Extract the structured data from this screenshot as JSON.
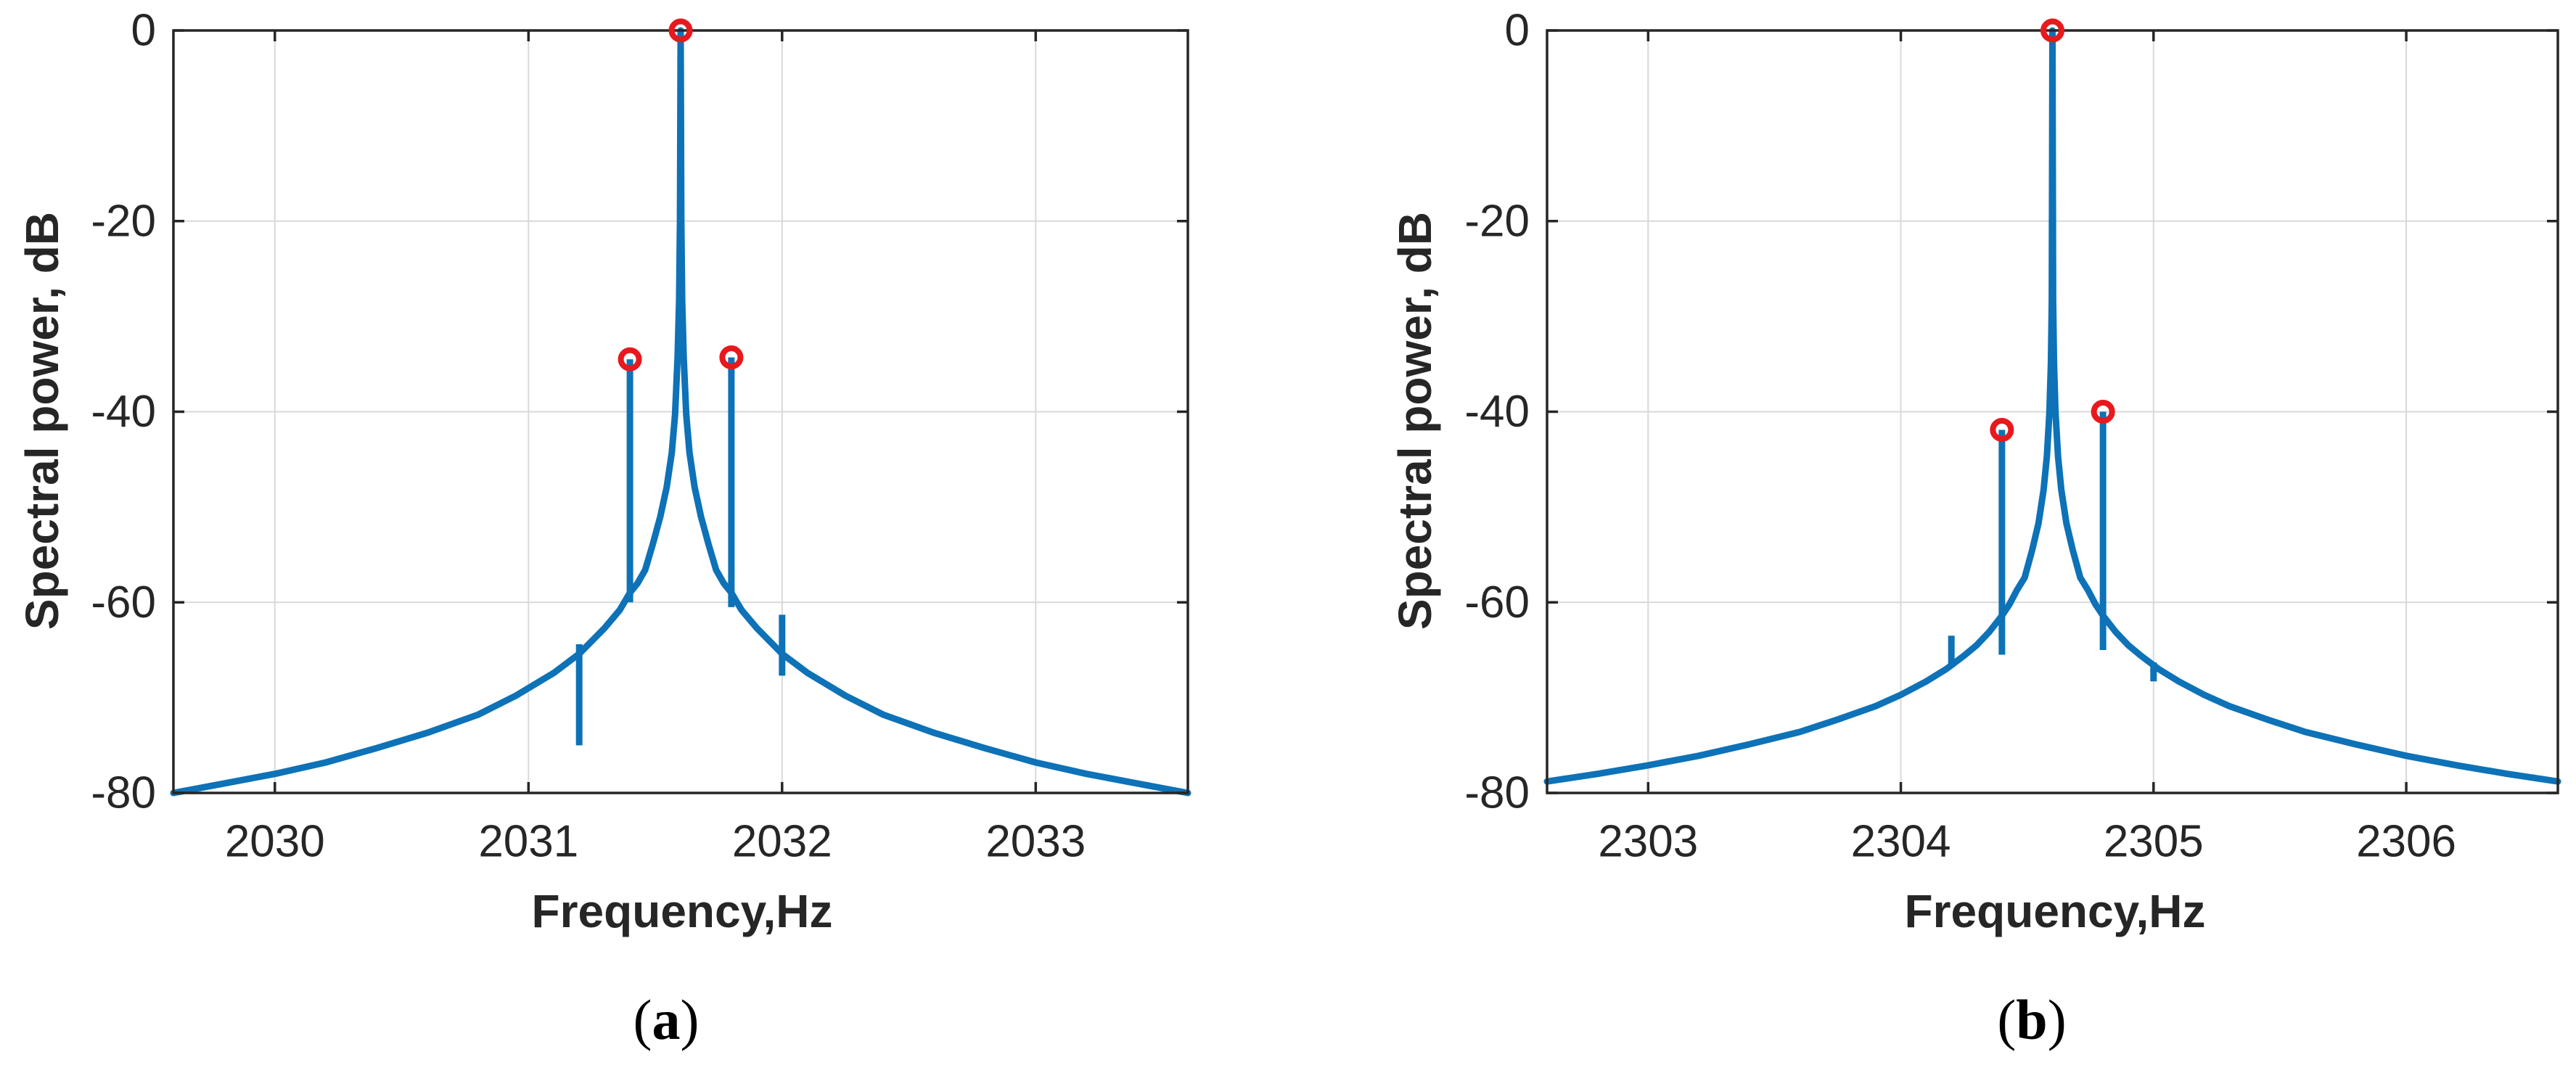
{
  "figure": {
    "background": "#ffffff",
    "ylabel": "Spectral power, dB",
    "xlabel": "Frequency,Hz"
  },
  "captions": {
    "a": {
      "open": "(",
      "letter": "a",
      "close": ")"
    },
    "b": {
      "open": "(",
      "letter": "b",
      "close": ")"
    }
  },
  "colors": {
    "line_blue": "#0d72b7",
    "marker_red": "#e8191d",
    "axis": "#262626",
    "grid": "#d9d9d9",
    "text": "#262626",
    "background": "#ffffff"
  },
  "chart_data": [
    {
      "id": "a",
      "type": "line",
      "xlabel": "Frequency,Hz",
      "ylabel": "Spectral power, dB",
      "xlim": [
        2029.6,
        2033.6
      ],
      "ylim": [
        -80,
        0
      ],
      "xticks": [
        2030,
        2031,
        2032,
        2033
      ],
      "yticks": [
        0,
        -20,
        -40,
        -60,
        -80
      ],
      "grid": true,
      "main_peak": {
        "freq": 2031.6,
        "dB": 0
      },
      "sidebands": [
        {
          "freq": 2031.4,
          "dB": -34.5
        },
        {
          "freq": 2031.8,
          "dB": -34.3
        }
      ],
      "markers": [
        {
          "freq": 2031.6,
          "dB": 0
        },
        {
          "freq": 2031.4,
          "dB": -34.5
        },
        {
          "freq": 2031.8,
          "dB": -34.3
        }
      ],
      "stems": [
        {
          "freq": 2031.4,
          "top": -34.5,
          "bottom": -60.0
        },
        {
          "freq": 2031.8,
          "top": -34.3,
          "bottom": -60.5
        }
      ],
      "spurs": [
        {
          "freq": 2031.2,
          "top": -64.4,
          "bottom": -75.0
        },
        {
          "freq": 2032.0,
          "top": -61.3,
          "bottom": -67.7
        }
      ],
      "curve": [
        [
          2029.6,
          -80.0
        ],
        [
          2029.8,
          -79.0
        ],
        [
          2030.0,
          -78.0
        ],
        [
          2030.2,
          -76.8
        ],
        [
          2030.4,
          -75.3
        ],
        [
          2030.6,
          -73.7
        ],
        [
          2030.8,
          -71.8
        ],
        [
          2030.95,
          -69.8
        ],
        [
          2031.1,
          -67.4
        ],
        [
          2031.2,
          -65.4
        ],
        [
          2031.3,
          -62.7
        ],
        [
          2031.36,
          -60.8
        ],
        [
          2031.4,
          -59.0
        ],
        [
          2031.43,
          -58.0
        ],
        [
          2031.46,
          -56.6
        ],
        [
          2031.49,
          -53.9
        ],
        [
          2031.52,
          -51.0
        ],
        [
          2031.545,
          -47.9
        ],
        [
          2031.565,
          -44.3
        ],
        [
          2031.578,
          -40.3
        ],
        [
          2031.588,
          -34.3
        ],
        [
          2031.594,
          -28.3
        ],
        [
          2031.5975,
          -20.0
        ],
        [
          2031.6,
          0.0
        ],
        [
          2031.6025,
          -20.0
        ],
        [
          2031.606,
          -28.3
        ],
        [
          2031.612,
          -34.3
        ],
        [
          2031.622,
          -40.3
        ],
        [
          2031.635,
          -44.3
        ],
        [
          2031.655,
          -47.9
        ],
        [
          2031.68,
          -51.0
        ],
        [
          2031.71,
          -53.9
        ],
        [
          2031.74,
          -56.6
        ],
        [
          2031.77,
          -58.0
        ],
        [
          2031.8,
          -59.0
        ],
        [
          2031.84,
          -60.8
        ],
        [
          2031.9,
          -62.7
        ],
        [
          2032.0,
          -65.4
        ],
        [
          2032.1,
          -67.4
        ],
        [
          2032.25,
          -69.8
        ],
        [
          2032.4,
          -71.8
        ],
        [
          2032.6,
          -73.7
        ],
        [
          2032.8,
          -75.3
        ],
        [
          2033.0,
          -76.8
        ],
        [
          2033.2,
          -78.0
        ],
        [
          2033.4,
          -79.0
        ],
        [
          2033.6,
          -80.0
        ]
      ]
    },
    {
      "id": "b",
      "type": "line",
      "xlabel": "Frequency,Hz",
      "ylabel": "Spectral power, dB",
      "xlim": [
        2302.6,
        2306.6
      ],
      "ylim": [
        -80,
        0
      ],
      "xticks": [
        2303,
        2304,
        2305,
        2306
      ],
      "yticks": [
        0,
        -20,
        -40,
        -60,
        -80
      ],
      "grid": true,
      "main_peak": {
        "freq": 2304.6,
        "dB": 0
      },
      "sidebands": [
        {
          "freq": 2304.4,
          "dB": -41.9
        },
        {
          "freq": 2304.8,
          "dB": -40.0
        }
      ],
      "markers": [
        {
          "freq": 2304.6,
          "dB": 0
        },
        {
          "freq": 2304.4,
          "dB": -41.9
        },
        {
          "freq": 2304.8,
          "dB": -40.0
        }
      ],
      "stems": [
        {
          "freq": 2304.4,
          "top": -41.9,
          "bottom": -65.5
        },
        {
          "freq": 2304.8,
          "top": -40.0,
          "bottom": -65.0
        }
      ],
      "spurs": [
        {
          "freq": 2304.2,
          "top": -63.5,
          "bottom": -66.8
        },
        {
          "freq": 2305.0,
          "top": -66.3,
          "bottom": -68.3
        }
      ],
      "curve": [
        [
          2302.6,
          -78.8
        ],
        [
          2302.8,
          -78.0
        ],
        [
          2303.0,
          -77.1
        ],
        [
          2303.2,
          -76.1
        ],
        [
          2303.4,
          -74.9
        ],
        [
          2303.6,
          -73.6
        ],
        [
          2303.75,
          -72.3
        ],
        [
          2303.9,
          -70.9
        ],
        [
          2304.0,
          -69.7
        ],
        [
          2304.1,
          -68.3
        ],
        [
          2304.18,
          -67.0
        ],
        [
          2304.25,
          -65.6
        ],
        [
          2304.3,
          -64.5
        ],
        [
          2304.35,
          -63.1
        ],
        [
          2304.4,
          -61.4
        ],
        [
          2304.43,
          -60.2
        ],
        [
          2304.46,
          -58.7
        ],
        [
          2304.49,
          -57.4
        ],
        [
          2304.52,
          -54.5
        ],
        [
          2304.545,
          -51.7
        ],
        [
          2304.565,
          -48.2
        ],
        [
          2304.578,
          -44.7
        ],
        [
          2304.588,
          -40.1
        ],
        [
          2304.594,
          -34.9
        ],
        [
          2304.5975,
          -28.3
        ],
        [
          2304.6,
          0.0
        ],
        [
          2304.6025,
          -28.3
        ],
        [
          2304.606,
          -34.9
        ],
        [
          2304.612,
          -40.1
        ],
        [
          2304.622,
          -44.7
        ],
        [
          2304.635,
          -48.2
        ],
        [
          2304.655,
          -51.7
        ],
        [
          2304.68,
          -54.5
        ],
        [
          2304.71,
          -57.4
        ],
        [
          2304.74,
          -58.7
        ],
        [
          2304.77,
          -60.2
        ],
        [
          2304.8,
          -61.4
        ],
        [
          2304.85,
          -63.1
        ],
        [
          2304.9,
          -64.5
        ],
        [
          2304.95,
          -65.6
        ],
        [
          2305.02,
          -67.0
        ],
        [
          2305.1,
          -68.3
        ],
        [
          2305.2,
          -69.7
        ],
        [
          2305.3,
          -70.9
        ],
        [
          2305.45,
          -72.3
        ],
        [
          2305.6,
          -73.6
        ],
        [
          2305.8,
          -74.9
        ],
        [
          2306.0,
          -76.1
        ],
        [
          2306.2,
          -77.1
        ],
        [
          2306.4,
          -78.0
        ],
        [
          2306.6,
          -78.8
        ]
      ]
    }
  ]
}
